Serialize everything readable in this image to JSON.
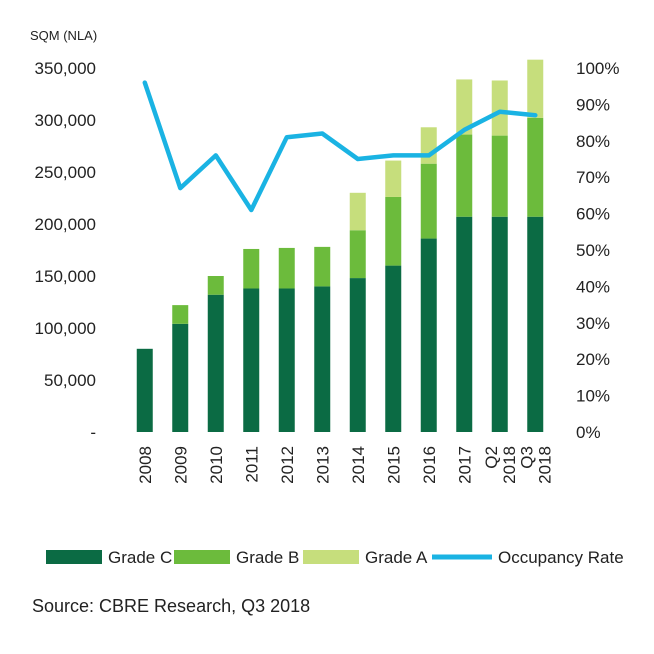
{
  "chart_data": {
    "type": "bar",
    "stacked": true,
    "y_unit_label": "SQM (NLA)",
    "categories": [
      "2008",
      "2009",
      "2010",
      "2011",
      "2012",
      "2013",
      "2014",
      "2015",
      "2016",
      "2017",
      "Q2 2018",
      "Q3 2018"
    ],
    "series": [
      {
        "name": "Grade C",
        "color": "#0b6b44",
        "values": [
          80000,
          104000,
          132000,
          138000,
          138000,
          140000,
          148000,
          160000,
          186000,
          207000,
          207000,
          207000
        ]
      },
      {
        "name": "Grade B",
        "color": "#6cbb3c",
        "values": [
          0,
          18000,
          18000,
          38000,
          39000,
          38000,
          46000,
          66000,
          72000,
          79000,
          78000,
          95000
        ]
      },
      {
        "name": "Grade A",
        "color": "#c6de7c",
        "values": [
          0,
          0,
          0,
          0,
          0,
          0,
          36000,
          35000,
          35000,
          53000,
          53000,
          56000
        ]
      }
    ],
    "line_series": {
      "name": "Occupancy Rate",
      "color": "#1ab3e3",
      "axis": "right",
      "values": [
        96,
        67,
        76,
        61,
        81,
        82,
        75,
        76,
        76,
        83,
        88,
        87
      ]
    },
    "y_left": {
      "min": 0,
      "max": 350000,
      "ticks": [
        "-",
        "50,000",
        "100,000",
        "150,000",
        "200,000",
        "250,000",
        "300,000",
        "350,000"
      ]
    },
    "y_right": {
      "min": 0,
      "max": 100,
      "ticks": [
        "0%",
        "10%",
        "20%",
        "30%",
        "40%",
        "50%",
        "60%",
        "70%",
        "80%",
        "90%",
        "100%"
      ]
    },
    "legend": [
      "Grade C",
      "Grade B",
      "Grade A",
      "Occupancy Rate"
    ],
    "legend_position": "bottom"
  },
  "source": "Source: CBRE Research, Q3 2018"
}
